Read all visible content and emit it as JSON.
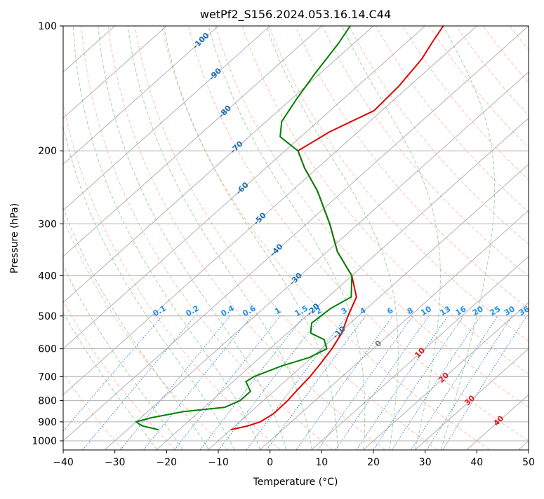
{
  "chart_data": {
    "type": "line",
    "subtype": "skew-t log-p diagram",
    "title": "wetPf2_S156.2024.053.16.14.C44",
    "xlabel": "Temperature (°C)",
    "ylabel": "Pressure (hPa)",
    "xlim": [
      -40,
      50
    ],
    "ylim": [
      1050,
      100
    ],
    "y_scale": "log",
    "grid": true,
    "x_ticks": [
      "−40",
      "−30",
      "−20",
      "−10",
      "0",
      "10",
      "20",
      "30",
      "40",
      "50"
    ],
    "y_ticks": [
      "100",
      "200",
      "300",
      "400",
      "500",
      "600",
      "700",
      "800",
      "900",
      "1000"
    ],
    "colors": {
      "temperature": "#e00000",
      "dewpoint": "#008000",
      "dry_adiabat": "#ff8c69",
      "moist_adiabat": "#7fbf7f",
      "mixing_ratio": "#1f77d4",
      "isotherm": "#999999"
    },
    "mixing_ratio_labels": [
      "0.1",
      "0.2",
      "0.4",
      "0.6",
      "1",
      "1.5",
      "2",
      "3",
      "4",
      "6",
      "8",
      "10",
      "13",
      "16",
      "20",
      "25",
      "30",
      "36"
    ],
    "isotherm_labels_blue": [
      "-100",
      "-90",
      "-80",
      "-70",
      "-60",
      "-50",
      "-40",
      "-30",
      "-20",
      "-10"
    ],
    "isotherm_label_gray": "0",
    "isotherm_labels_red": [
      "10",
      "20",
      "30",
      "40"
    ],
    "series": [
      {
        "name": "Temperature",
        "points": [
          {
            "p": 940,
            "t": -10.0
          },
          {
            "p": 920,
            "t": -7.5
          },
          {
            "p": 900,
            "t": -6.0
          },
          {
            "p": 860,
            "t": -5.2
          },
          {
            "p": 800,
            "t": -5.3
          },
          {
            "p": 750,
            "t": -5.8
          },
          {
            "p": 700,
            "t": -6.2
          },
          {
            "p": 650,
            "t": -7.0
          },
          {
            "p": 600,
            "t": -8.0
          },
          {
            "p": 550,
            "t": -9.5
          },
          {
            "p": 500,
            "t": -12.0
          },
          {
            "p": 450,
            "t": -14.5
          },
          {
            "p": 400,
            "t": -20.0
          },
          {
            "p": 350,
            "t": -28.0
          },
          {
            "p": 300,
            "t": -35.5
          },
          {
            "p": 250,
            "t": -45.0
          },
          {
            "p": 220,
            "t": -52.5
          },
          {
            "p": 200,
            "t": -57.5
          },
          {
            "p": 180,
            "t": -55.5
          },
          {
            "p": 160,
            "t": -51.5
          },
          {
            "p": 140,
            "t": -52.0
          },
          {
            "p": 120,
            "t": -53.5
          },
          {
            "p": 110,
            "t": -55.0
          },
          {
            "p": 100,
            "t": -56.5
          }
        ]
      },
      {
        "name": "Dewpoint",
        "points": [
          {
            "p": 940,
            "t": -24.0
          },
          {
            "p": 920,
            "t": -28.0
          },
          {
            "p": 900,
            "t": -30.0
          },
          {
            "p": 880,
            "t": -28.0
          },
          {
            "p": 850,
            "t": -23.0
          },
          {
            "p": 830,
            "t": -16.0
          },
          {
            "p": 800,
            "t": -14.5
          },
          {
            "p": 760,
            "t": -14.5
          },
          {
            "p": 720,
            "t": -17.5
          },
          {
            "p": 700,
            "t": -17.0
          },
          {
            "p": 660,
            "t": -14.0
          },
          {
            "p": 630,
            "t": -10.5
          },
          {
            "p": 600,
            "t": -9.0
          },
          {
            "p": 570,
            "t": -11.5
          },
          {
            "p": 550,
            "t": -15.5
          },
          {
            "p": 520,
            "t": -17.5
          },
          {
            "p": 480,
            "t": -17.0
          },
          {
            "p": 450,
            "t": -15.5
          },
          {
            "p": 400,
            "t": -20.0
          },
          {
            "p": 350,
            "t": -28.0
          },
          {
            "p": 300,
            "t": -35.5
          },
          {
            "p": 250,
            "t": -45.0
          },
          {
            "p": 220,
            "t": -52.5
          },
          {
            "p": 200,
            "t": -57.5
          },
          {
            "p": 185,
            "t": -64.0
          },
          {
            "p": 170,
            "t": -67.0
          },
          {
            "p": 150,
            "t": -69.0
          },
          {
            "p": 130,
            "t": -71.0
          },
          {
            "p": 110,
            "t": -73.0
          },
          {
            "p": 100,
            "t": -74.5
          }
        ]
      }
    ]
  }
}
